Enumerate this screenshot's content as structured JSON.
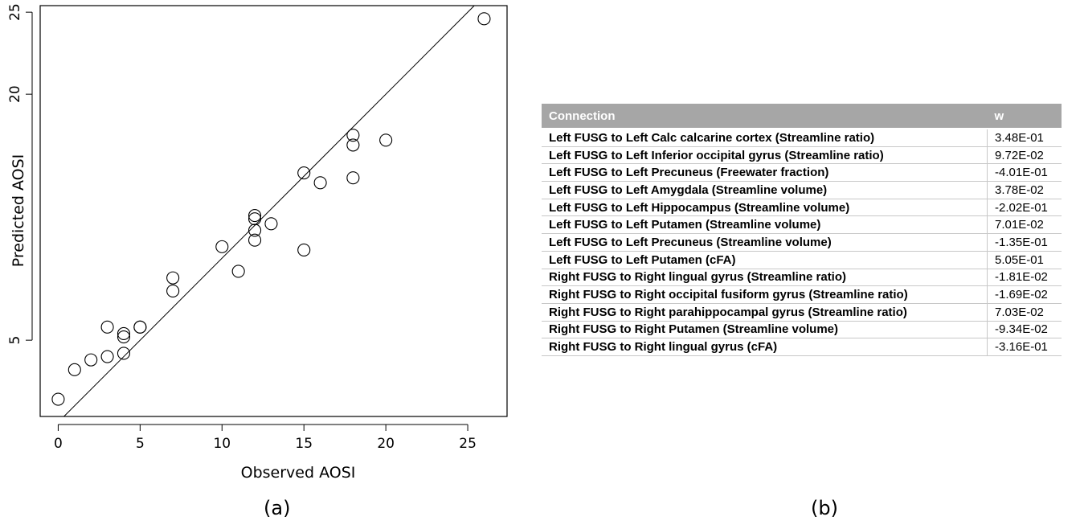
{
  "chart_data": {
    "type": "scatter",
    "xlabel": "Observed AOSI",
    "ylabel": "Predicted AOSI",
    "xlim": [
      -1.1,
      27.4
    ],
    "ylim": [
      0.35,
      25.4
    ],
    "xticks": [
      0,
      5,
      10,
      15,
      20,
      25
    ],
    "yticks": [
      5,
      20,
      25
    ],
    "reference_line": {
      "slope": 1,
      "intercept": 0
    },
    "points": [
      {
        "x": 0,
        "y": 1.4
      },
      {
        "x": 1,
        "y": 3.2
      },
      {
        "x": 2,
        "y": 3.8
      },
      {
        "x": 3,
        "y": 4.0
      },
      {
        "x": 3,
        "y": 5.8
      },
      {
        "x": 4,
        "y": 4.2
      },
      {
        "x": 4,
        "y": 5.2
      },
      {
        "x": 4,
        "y": 5.4
      },
      {
        "x": 5,
        "y": 5.8
      },
      {
        "x": 5,
        "y": 5.8
      },
      {
        "x": 7,
        "y": 8.0
      },
      {
        "x": 7,
        "y": 8.8
      },
      {
        "x": 10,
        "y": 10.7
      },
      {
        "x": 11,
        "y": 9.2
      },
      {
        "x": 12,
        "y": 11.1
      },
      {
        "x": 12,
        "y": 11.7
      },
      {
        "x": 12,
        "y": 12.4
      },
      {
        "x": 12,
        "y": 12.6
      },
      {
        "x": 13,
        "y": 12.1
      },
      {
        "x": 15,
        "y": 10.5
      },
      {
        "x": 15,
        "y": 15.2
      },
      {
        "x": 16,
        "y": 14.6
      },
      {
        "x": 18,
        "y": 14.9
      },
      {
        "x": 18,
        "y": 16.9
      },
      {
        "x": 18,
        "y": 17.5
      },
      {
        "x": 20,
        "y": 17.2
      },
      {
        "x": 26,
        "y": 24.6
      }
    ]
  },
  "figure": {
    "label_a": "(a)",
    "label_b": "(b)"
  },
  "table": {
    "headers": {
      "connection": "Connection",
      "w": "w"
    },
    "rows": [
      {
        "connection": "Left FUSG to Left Calc calcarine cortex  (Streamline ratio)",
        "w": "3.48E-01"
      },
      {
        "connection": "Left FUSG to Left Inferior occipital gyrus  (Streamline ratio)",
        "w": "9.72E-02"
      },
      {
        "connection": "Left FUSG to Left Precuneus  (Freewater fraction)",
        "w": "-4.01E-01"
      },
      {
        "connection": "Left FUSG to Left Amygdala  (Streamline volume)",
        "w": "3.78E-02"
      },
      {
        "connection": "Left FUSG to Left Hippocampus  (Streamline volume)",
        "w": "-2.02E-01"
      },
      {
        "connection": "Left FUSG to Left Putamen  (Streamline volume)",
        "w": "7.01E-02"
      },
      {
        "connection": "Left FUSG to Left Precuneus  (Streamline volume)",
        "w": "-1.35E-01"
      },
      {
        "connection": "Left FUSG to Left Putamen  (cFA)",
        "w": "5.05E-01"
      },
      {
        "connection": "Right FUSG to Right lingual gyrus  (Streamline ratio)",
        "w": "-1.81E-02"
      },
      {
        "connection": "Right FUSG to Right occipital fusiform gyrus  (Streamline ratio)",
        "w": "-1.69E-02"
      },
      {
        "connection": "Right FUSG to Right parahippocampal gyrus  (Streamline ratio)",
        "w": "7.03E-02"
      },
      {
        "connection": "Right FUSG to Right Putamen  (Streamline volume)",
        "w": "-9.34E-02"
      },
      {
        "connection": "Right FUSG to Right lingual gyrus  (cFA)",
        "w": "-3.16E-01"
      }
    ]
  }
}
